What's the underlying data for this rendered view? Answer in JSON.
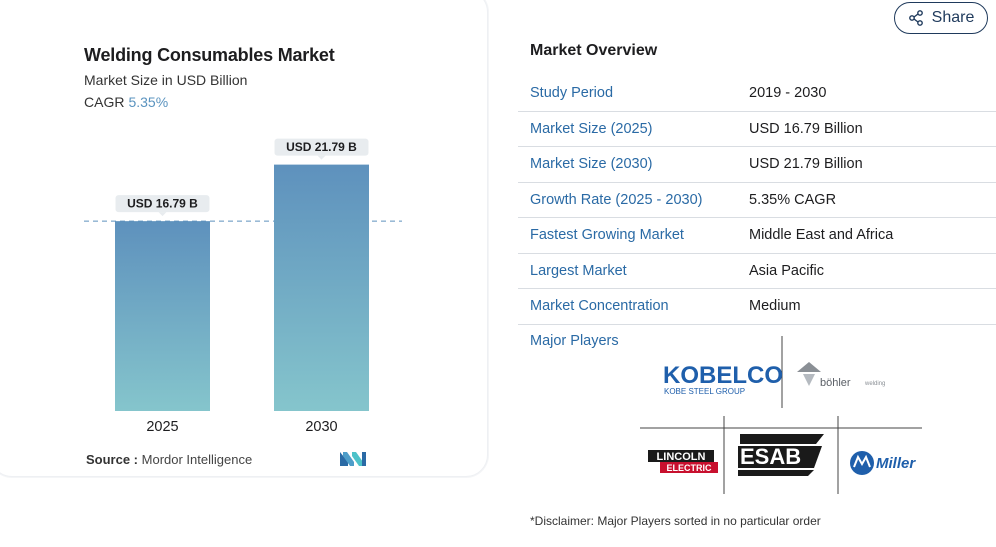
{
  "chart_data": {
    "type": "bar",
    "title": "Welding Consumables Market",
    "subtitle": "Market Size in USD Billion",
    "cagr_label": "CAGR",
    "cagr_value": "5.35%",
    "categories": [
      "2025",
      "2030"
    ],
    "values": [
      16.79,
      21.79
    ],
    "data_labels": [
      "USD 16.79 B",
      "USD 21.79 B"
    ],
    "ylim": [
      0,
      26
    ],
    "grid": false,
    "reference_line": 16.79,
    "colors": {
      "bar_top": "#5e91bd",
      "bar_bottom": "#85c5cc",
      "label_bg": "#e8ecef",
      "ref_line": "#5e91bd"
    }
  },
  "source": {
    "label": "Source :",
    "value": "Mordor Intelligence"
  },
  "share": {
    "label": "Share",
    "icon": "share-icon"
  },
  "overview": {
    "title": "Market Overview",
    "rows": [
      {
        "key": "Study Period",
        "value": "2019 - 2030"
      },
      {
        "key": "Market Size (2025)",
        "value": "USD 16.79 Billion"
      },
      {
        "key": "Market Size (2030)",
        "value": "USD 21.79 Billion"
      },
      {
        "key": "Growth Rate (2025 - 2030)",
        "value": "5.35% CAGR"
      },
      {
        "key": "Fastest Growing Market",
        "value": "Middle East and Africa"
      },
      {
        "key": "Largest Market",
        "value": "Asia Pacific"
      },
      {
        "key": "Market Concentration",
        "value": "Medium"
      }
    ]
  },
  "major_players": {
    "label": "Major Players",
    "logos": [
      {
        "name": "KOBELCO",
        "sub": "KOBE STEEL GROUP"
      },
      {
        "name": "böhler",
        "sub": "welding"
      },
      {
        "name": "LINCOLN",
        "sub": "ELECTRIC"
      },
      {
        "name": "ESAB"
      },
      {
        "name": "Miller"
      }
    ]
  },
  "disclaimer": "*Disclaimer: Major Players sorted in no particular order"
}
